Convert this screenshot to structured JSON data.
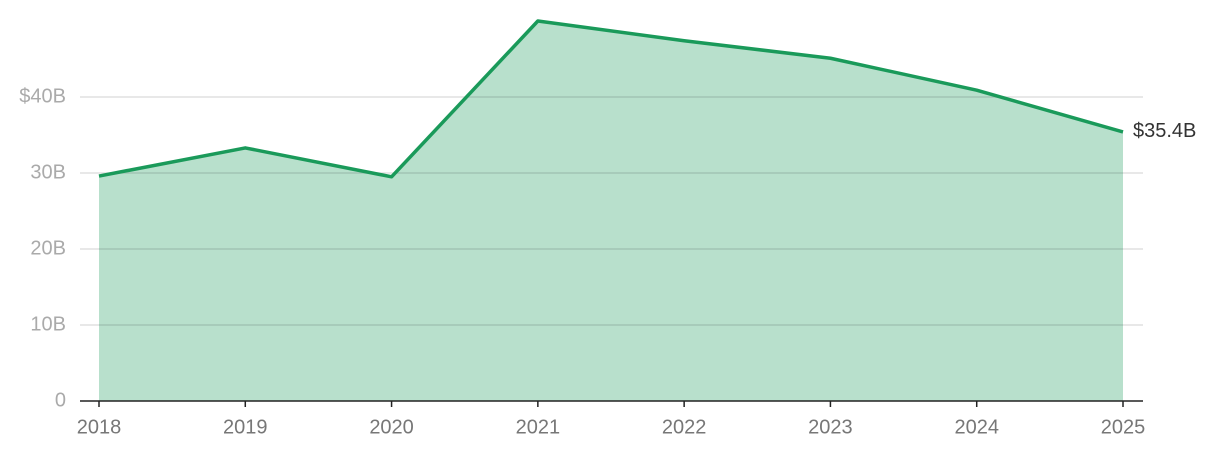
{
  "chart_data": {
    "type": "area",
    "x": [
      2018,
      2019,
      2020,
      2021,
      2022,
      2023,
      2024,
      2025
    ],
    "series": [
      {
        "color": "#1a9a5a",
        "fill": "#b8e0cc",
        "values": [
          29.6,
          33.3,
          29.5,
          50.0,
          47.4,
          45.1,
          40.9,
          35.4
        ],
        "value_labels": [
          null,
          null,
          null,
          null,
          null,
          null,
          null,
          "$35.4B"
        ]
      }
    ],
    "xlim": [
      2018,
      2025
    ],
    "xticks": [
      2018,
      2019,
      2020,
      2021,
      2022,
      2023,
      2024,
      2025
    ],
    "ylim": [
      0,
      50
    ],
    "yticks": [
      0,
      {
        "value": 10,
        "label": "10B"
      },
      {
        "value": 20,
        "label": "20B"
      },
      {
        "value": 30,
        "label": "30B"
      },
      {
        "value": 40,
        "label": "$40B"
      }
    ],
    "grid": true
  }
}
